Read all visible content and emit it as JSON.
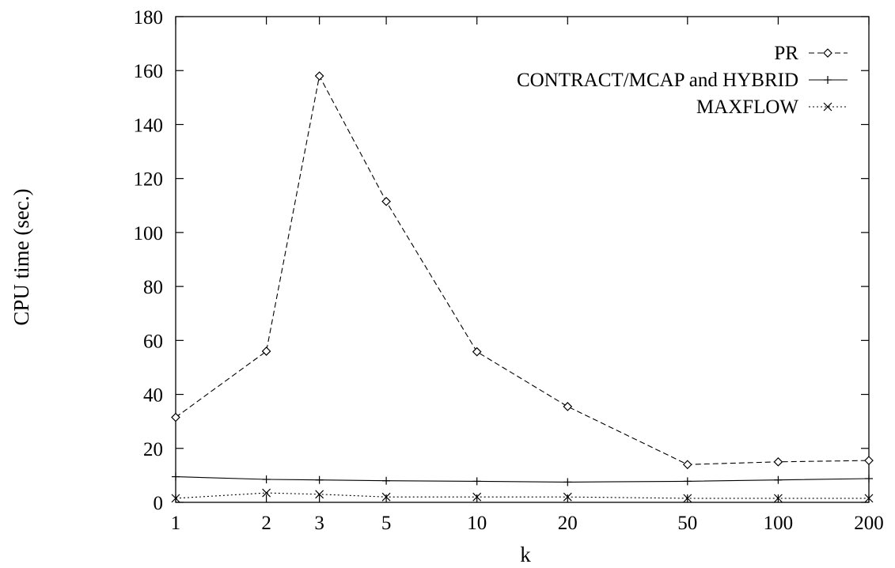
{
  "chart_data": {
    "type": "line",
    "xlabel": "k",
    "ylabel": "CPU time (sec.)",
    "x": [
      1,
      2,
      3,
      5,
      10,
      20,
      50,
      100,
      200
    ],
    "x_tick_labels": [
      "1",
      "2",
      "3",
      "5",
      "10",
      "20",
      "50",
      "100",
      "200"
    ],
    "x_scale": "log",
    "xlim": [
      1,
      200
    ],
    "ylim": [
      0,
      180
    ],
    "y_ticks": [
      0,
      20,
      40,
      60,
      80,
      100,
      120,
      140,
      160,
      180
    ],
    "grid": false,
    "legend_position": "top-right",
    "series": [
      {
        "name": "PR",
        "values": [
          31.5,
          56,
          158,
          111.5,
          55.8,
          35.5,
          14,
          15,
          15.5
        ],
        "line_style": "dashed",
        "marker": "diamond",
        "color": "#000000"
      },
      {
        "name": "CONTRACT/MCAP and HYBRID",
        "values": [
          9.5,
          8.5,
          8.3,
          8,
          7.8,
          7.5,
          7.8,
          8.3,
          8.8
        ],
        "line_style": "solid",
        "marker": "plus",
        "color": "#000000"
      },
      {
        "name": "MAXFLOW",
        "values": [
          1.5,
          3.5,
          3,
          2,
          2,
          2,
          1.5,
          1.5,
          1.5
        ],
        "line_style": "dotted",
        "marker": "cross",
        "color": "#000000"
      }
    ]
  }
}
